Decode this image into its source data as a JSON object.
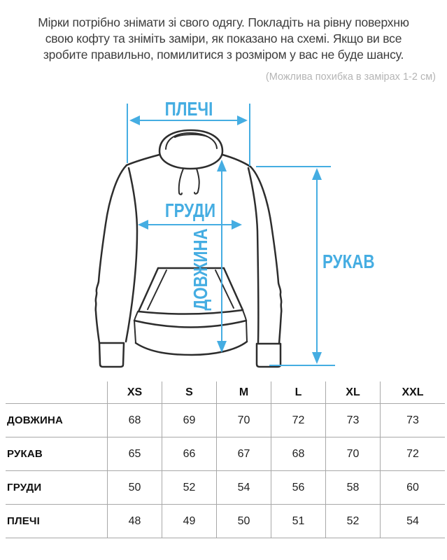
{
  "intro": {
    "lines": [
      "Мірки потрібно знімати зі свого одягу. Покладіть на рівну поверхню",
      "свою кофту та зніміть заміри, як показано на схемі. Якщо ви все",
      "зробите правильно, помилитися з розміром у вас не буде шансу."
    ],
    "note": "(Можлива похибка в замірах 1-2 см)"
  },
  "diagram": {
    "labels": {
      "shoulders": "ПЛЕЧІ",
      "chest": "ГРУДИ",
      "length": "ДОВЖИНА",
      "sleeve": "РУКАВ"
    },
    "accent_color": "#45ade2",
    "outline_color": "#2d2d2d"
  },
  "size_table": {
    "columns": [
      "XS",
      "S",
      "M",
      "L",
      "XL",
      "XXL"
    ],
    "rows": [
      {
        "label": "ДОВЖИНА",
        "values": [
          "68",
          "69",
          "70",
          "72",
          "73",
          "73"
        ]
      },
      {
        "label": "РУКАВ",
        "values": [
          "65",
          "66",
          "67",
          "68",
          "70",
          "72"
        ]
      },
      {
        "label": "ГРУДИ",
        "values": [
          "50",
          "52",
          "54",
          "56",
          "58",
          "60"
        ]
      },
      {
        "label": "ПЛЕЧІ",
        "values": [
          "48",
          "49",
          "50",
          "51",
          "52",
          "54"
        ]
      }
    ]
  }
}
